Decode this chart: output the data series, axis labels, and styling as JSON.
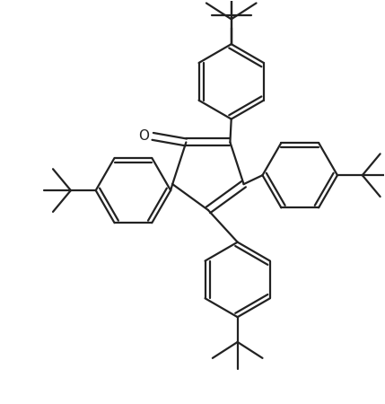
{
  "bg_color": "#ffffff",
  "line_color": "#222222",
  "lw": 1.6,
  "figsize": [
    4.29,
    4.5
  ],
  "dpi": 100,
  "xlim": [
    0,
    429
  ],
  "ylim": [
    0,
    450
  ]
}
